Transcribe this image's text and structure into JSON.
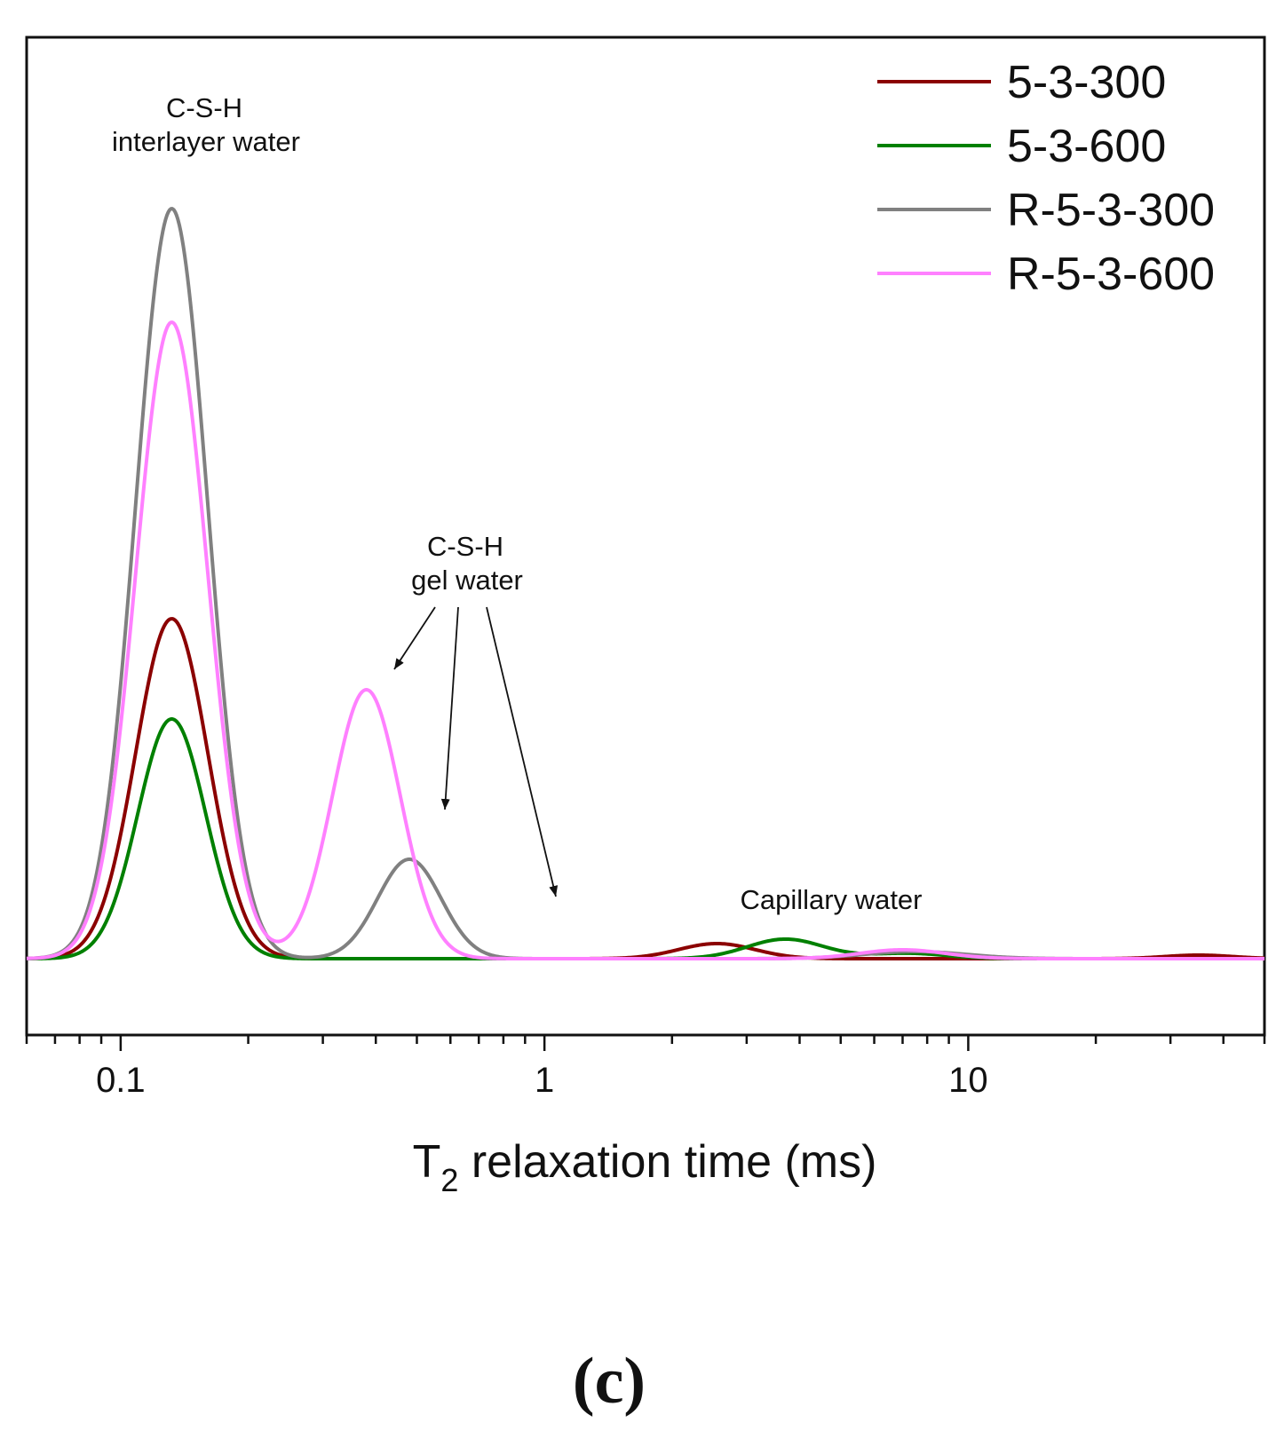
{
  "chart_data": {
    "type": "line",
    "xscale": "log",
    "xlim": [
      0.06,
      50
    ],
    "ylim": [
      0,
      1.0
    ],
    "xlabel": "T",
    "xlabel_sub": "2",
    "xlabel_rest": " relaxation time (ms)",
    "ylabel": "",
    "x_tick_labels": [
      {
        "value": 0.1,
        "label": "0.1"
      },
      {
        "value": 1,
        "label": "1"
      },
      {
        "value": 10,
        "label": "10"
      }
    ],
    "legend_position": "top-right",
    "series": [
      {
        "name": "5-3-300",
        "color": "#8b0000",
        "peaks": [
          {
            "center": 0.132,
            "amplitude": 0.383,
            "width": 0.085
          },
          {
            "center": 2.55,
            "amplitude": 0.017,
            "width": 0.09
          },
          {
            "center": 35,
            "amplitude": 0.004,
            "width": 0.08
          }
        ]
      },
      {
        "name": "5-3-600",
        "color": "#008000",
        "peaks": [
          {
            "center": 0.132,
            "amplitude": 0.27,
            "width": 0.08
          },
          {
            "center": 3.7,
            "amplitude": 0.022,
            "width": 0.09
          },
          {
            "center": 7.2,
            "amplitude": 0.006,
            "width": 0.09
          }
        ]
      },
      {
        "name": "R-5-3-300",
        "color": "#808080",
        "peaks": [
          {
            "center": 0.132,
            "amplitude": 0.845,
            "width": 0.085
          },
          {
            "center": 0.48,
            "amplitude": 0.112,
            "width": 0.075
          },
          {
            "center": 7.5,
            "amplitude": 0.008,
            "width": 0.12
          }
        ]
      },
      {
        "name": "R-5-3-600",
        "color": "#ff80ff",
        "peaks": [
          {
            "center": 0.132,
            "amplitude": 0.717,
            "width": 0.085
          },
          {
            "center": 0.38,
            "amplitude": 0.303,
            "width": 0.08
          },
          {
            "center": 7.0,
            "amplitude": 0.01,
            "width": 0.1
          }
        ]
      }
    ],
    "annotations": {
      "interlayer": {
        "line1": "C-S-H",
        "line2": "interlayer water"
      },
      "gel": {
        "line1": "C-S-H",
        "line2": "gel water"
      },
      "capillary": {
        "text": "Capillary water"
      }
    },
    "panel_label": "(c)"
  }
}
